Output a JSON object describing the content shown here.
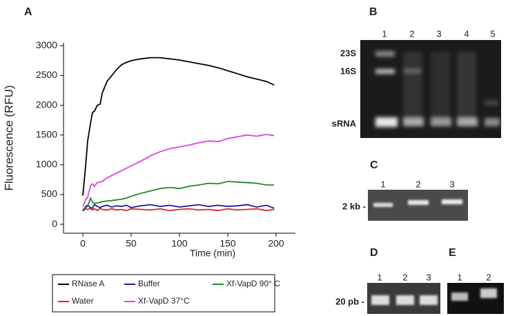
{
  "chart_data": {
    "type": "line",
    "x_label": "Time (min)",
    "y_label": "Fluorescence (RFU)",
    "x": [
      0,
      3,
      5,
      8,
      10,
      12,
      15,
      18,
      20,
      25,
      30,
      35,
      40,
      45,
      50,
      60,
      70,
      80,
      90,
      100,
      110,
      120,
      130,
      140,
      150,
      160,
      170,
      180,
      190,
      198
    ],
    "series": [
      {
        "name": "RNase A",
        "color": "#000000",
        "values": [
          480,
          1000,
          1400,
          1700,
          1880,
          1900,
          2000,
          2020,
          2200,
          2400,
          2500,
          2600,
          2680,
          2720,
          2750,
          2780,
          2800,
          2800,
          2780,
          2760,
          2730,
          2700,
          2670,
          2630,
          2580,
          2530,
          2480,
          2440,
          2400,
          2340
        ]
      },
      {
        "name": "Water",
        "color": "#e02020",
        "values": [
          230,
          260,
          250,
          270,
          240,
          260,
          230,
          270,
          250,
          240,
          260,
          240,
          250,
          230,
          260,
          250,
          240,
          260,
          230,
          250,
          260,
          240,
          250,
          230,
          260,
          240,
          250,
          260,
          230,
          250
        ]
      },
      {
        "name": "Buffer",
        "color": "#1a1aa8",
        "values": [
          220,
          300,
          320,
          280,
          270,
          330,
          300,
          280,
          300,
          320,
          290,
          310,
          300,
          320,
          280,
          310,
          330,
          300,
          320,
          290,
          310,
          330,
          300,
          320,
          300,
          310,
          330,
          290,
          320,
          270
        ]
      },
      {
        "name": "Xf-VapD 37°C",
        "color": "#e040e0",
        "values": [
          300,
          420,
          450,
          650,
          680,
          640,
          700,
          710,
          720,
          780,
          820,
          860,
          900,
          940,
          980,
          1060,
          1150,
          1220,
          1270,
          1300,
          1330,
          1370,
          1400,
          1390,
          1440,
          1470,
          1500,
          1480,
          1510,
          1490
        ]
      },
      {
        "name": "Xf-VapD 90° C",
        "color": "#1e8a1e",
        "values": [
          250,
          280,
          300,
          440,
          370,
          350,
          360,
          370,
          380,
          390,
          400,
          410,
          420,
          440,
          470,
          520,
          560,
          600,
          620,
          600,
          640,
          660,
          690,
          680,
          720,
          710,
          700,
          690,
          660,
          660
        ]
      }
    ],
    "xlim": [
      -20,
      220
    ],
    "xticks": [
      0,
      50,
      100,
      150,
      200
    ],
    "ylim": [
      -150,
      3050
    ],
    "yticks": [
      0,
      500,
      1000,
      1500,
      2000,
      2500,
      3000
    ],
    "legend": "bottom"
  },
  "panels": {
    "a": "A",
    "b": {
      "label": "B",
      "lanes": [
        "1",
        "2",
        "3",
        "4",
        "5"
      ],
      "markers": [
        "23S",
        "16S",
        "sRNA"
      ]
    },
    "c": {
      "label": "C",
      "lanes": [
        "1",
        "2",
        "3"
      ],
      "marker": "2 kb -"
    },
    "d": {
      "label": "D",
      "lanes": [
        "1",
        "2",
        "3"
      ],
      "marker": "20 pb -"
    },
    "e": {
      "label": "E",
      "lanes": [
        "1",
        "2"
      ]
    }
  }
}
